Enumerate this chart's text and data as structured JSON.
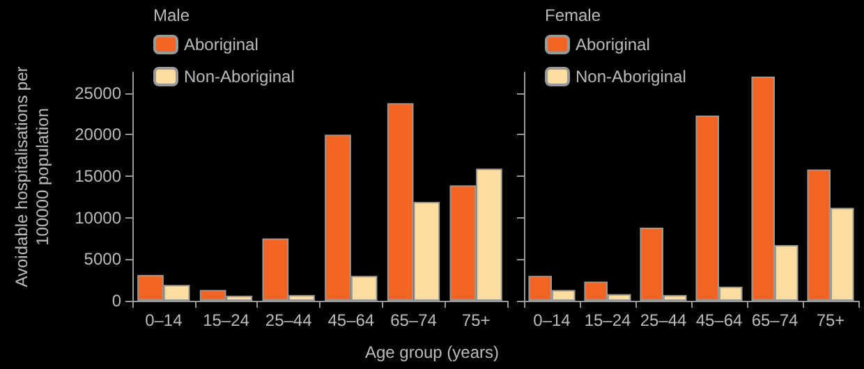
{
  "chart_data": [
    {
      "type": "bar",
      "title": "Male",
      "ylabel": "Avoidable hospitalisations per 100000 population",
      "xlabel": "Age group (years)",
      "categories": [
        "0–14",
        "15–24",
        "25–44",
        "45–64",
        "65–74",
        "75+"
      ],
      "series": [
        {
          "name": "Aboriginal",
          "color": "#f26522",
          "values": [
            3100,
            1300,
            7500,
            20000,
            23800,
            13900
          ]
        },
        {
          "name": "Non-Aboriginal",
          "color": "#fddea0",
          "values": [
            1900,
            600,
            700,
            3000,
            11900,
            15900
          ]
        }
      ],
      "ylim": [
        0,
        27500
      ],
      "yticks": [
        0,
        5000,
        10000,
        15000,
        20000,
        25000
      ],
      "grid": false,
      "legend": "top left"
    },
    {
      "type": "bar",
      "title": "Female",
      "categories": [
        "0–14",
        "15–24",
        "25–44",
        "45–64",
        "65–74",
        "75+"
      ],
      "series": [
        {
          "name": "Aboriginal",
          "color": "#f26522",
          "values": [
            3000,
            2300,
            8800,
            22300,
            27000,
            15800
          ]
        },
        {
          "name": "Non-Aboriginal",
          "color": "#fddea0",
          "values": [
            1300,
            800,
            700,
            1700,
            6700,
            11200
          ]
        }
      ],
      "ylim": [
        0,
        27500
      ],
      "yticks": [
        0,
        5000,
        10000,
        15000,
        20000,
        25000
      ],
      "grid": false,
      "legend": "top left",
      "tick_labels": "x"
    }
  ]
}
